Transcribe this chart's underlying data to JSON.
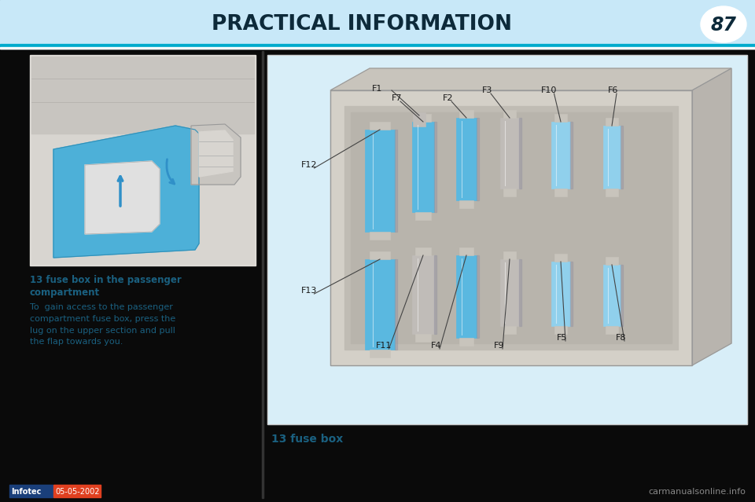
{
  "title": "PRACTICAL INFORMATION",
  "page_number": "87",
  "bg_color": "#0a0a0a",
  "header_bg": "#c8e8f8",
  "header_text_color": "#0d2a3a",
  "stripe_blue": "#00aacc",
  "stripe_white": "#ffffff",
  "content_bg": "#0a0a0a",
  "left_panel_bg": "#e8e8e8",
  "right_panel_bg": "#d8eef8",
  "section_title": "13 fuse box in the passenger\ncompartment",
  "section_body": "To  gain access to the passenger\ncompartment fuse box, press the\nlug on the upper section and pull\nthe flap towards you.",
  "caption": "13 fuse box",
  "footer_left_a": "Infotec",
  "footer_left_b": "05-05-2002",
  "footer_right": "carmanualsonline.info",
  "fuse_box_bg": "#dce8e0",
  "fuse_blue": "#5ab8e0",
  "fuse_blue_light": "#90d0ec",
  "fuse_grey": "#c0bcb8",
  "box_face": "#d8d2c8",
  "box_top": "#c8c4bc",
  "box_right": "#b8b4ac",
  "box_inner": "#ccc8c0"
}
